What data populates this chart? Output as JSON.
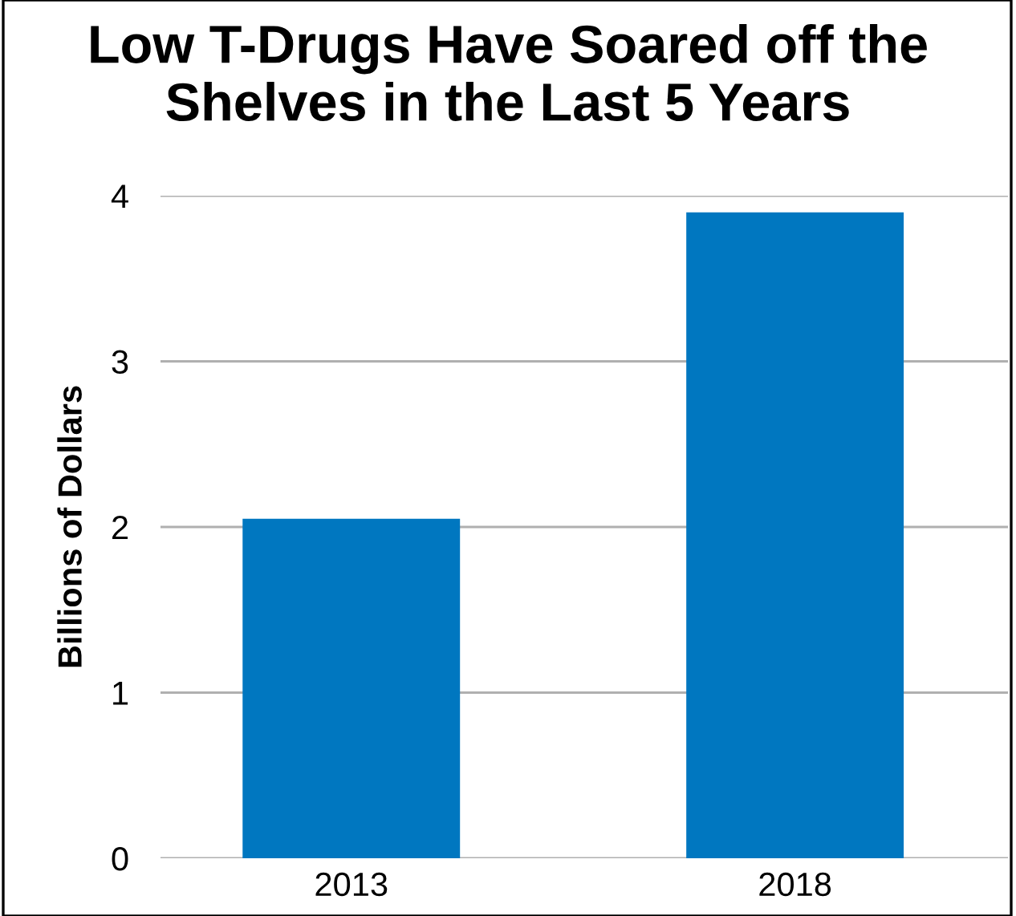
{
  "chart_data": {
    "type": "bar",
    "title": "Low T-Drugs Have Soared off the Shelves in the Last 5 Years",
    "ylabel": "Billions of Dollars",
    "categories": [
      "2013",
      "2018"
    ],
    "values": [
      2.05,
      3.9
    ],
    "color": "#0077c0",
    "ylim": [
      0,
      4
    ],
    "yticks": [
      0,
      1,
      2,
      3,
      4
    ],
    "grid": "y"
  }
}
